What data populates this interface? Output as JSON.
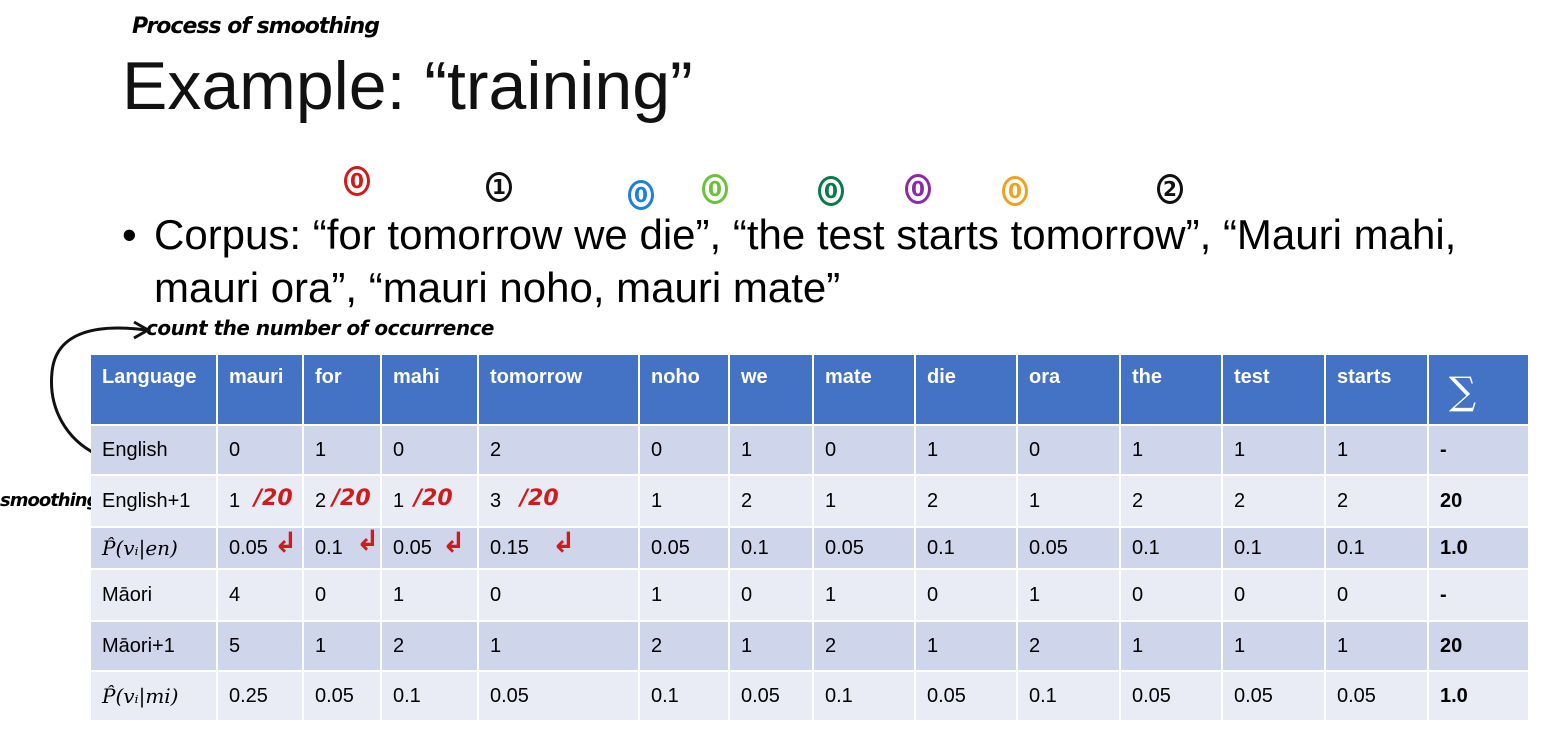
{
  "annotations": {
    "top_note": "Process of smoothing",
    "count_note": "count the number of occurrence",
    "smoothing_note": "smoothing",
    "fraction_notes": [
      "/20",
      "/20",
      "/20",
      "/20"
    ],
    "circled_numbers": [
      {
        "label": "0",
        "color": "#d11a1a"
      },
      {
        "label": "1",
        "color": "#111111"
      },
      {
        "label": "0",
        "color": "#1e7fe0"
      },
      {
        "label": "0",
        "color": "#6cc13a"
      },
      {
        "label": "0",
        "color": "#0a7a4a"
      },
      {
        "label": "0",
        "color": "#8a2aa8"
      },
      {
        "label": "0",
        "color": "#f0a21e"
      },
      {
        "label": "2",
        "color": "#111111"
      }
    ]
  },
  "slide": {
    "title": "Example: “training”",
    "bullet_marker": "•",
    "bullet_text": "Corpus: “for tomorrow we die”, “the test starts tomorrow”, “Mauri mahi, mauri ora”, “mauri noho, mauri mate”"
  },
  "table": {
    "headers": [
      "Language",
      "mauri",
      "for",
      "mahi",
      "tomorrow",
      "noho",
      "we",
      "mate",
      "die",
      "ora",
      "the",
      "test",
      "starts",
      "∑"
    ],
    "rows": [
      [
        "English",
        "0",
        "1",
        "0",
        "2",
        "0",
        "1",
        "0",
        "1",
        "0",
        "1",
        "1",
        "1",
        "-"
      ],
      [
        "English+1",
        "1",
        "2",
        "1",
        "3",
        "1",
        "2",
        "1",
        "2",
        "1",
        "2",
        "2",
        "2",
        "20"
      ],
      [
        "P̂(vᵢ|en)",
        "0.05",
        "0.1",
        "0.05",
        "0.15",
        "0.05",
        "0.1",
        "0.05",
        "0.1",
        "0.05",
        "0.1",
        "0.1",
        "0.1",
        "1.0"
      ],
      [
        "Māori",
        "4",
        "0",
        "1",
        "0",
        "1",
        "0",
        "1",
        "0",
        "1",
        "0",
        "0",
        "0",
        "-"
      ],
      [
        "Māori+1",
        "5",
        "1",
        "2",
        "1",
        "2",
        "1",
        "2",
        "1",
        "2",
        "1",
        "1",
        "1",
        "20"
      ],
      [
        "P̂(vᵢ|mi)",
        "0.25",
        "0.05",
        "0.1",
        "0.05",
        "0.1",
        "0.05",
        "0.1",
        "0.05",
        "0.1",
        "0.05",
        "0.05",
        "0.05",
        "1.0"
      ]
    ]
  }
}
